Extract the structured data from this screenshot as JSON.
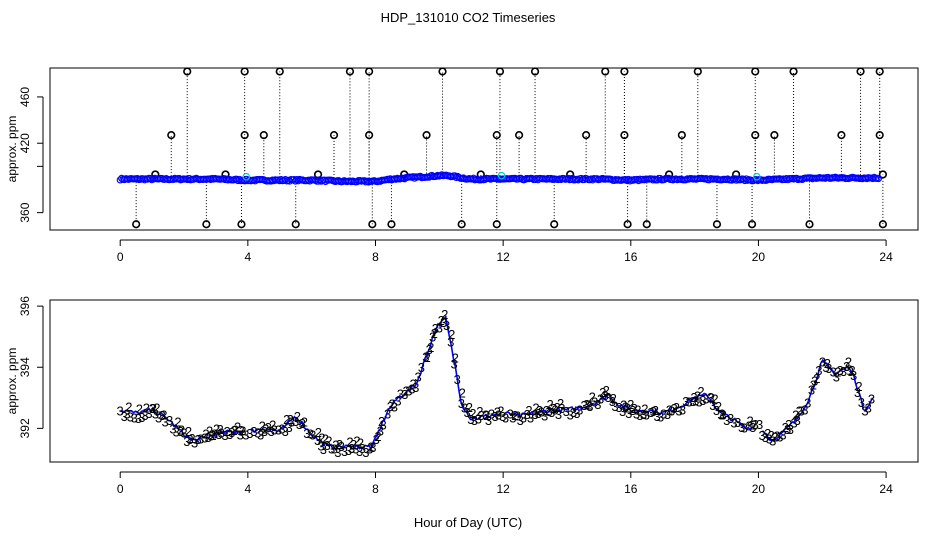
{
  "title": "HDP_131010  CO2 Timeseries",
  "xlabel": "Hour of Day (UTC)",
  "colors": {
    "primary": "#0000ff",
    "secondary": "#00cc00",
    "cyan": "#00cccc",
    "black": "#000000"
  },
  "chart_data": [
    {
      "type": "scatter",
      "panel": "top",
      "ylabel": "approx. ppm",
      "xlim": [
        -2.2,
        25
      ],
      "ylim": [
        345,
        485
      ],
      "xticks": [
        0,
        4,
        8,
        12,
        16,
        20,
        24
      ],
      "yticks": [
        360,
        400,
        420,
        460
      ],
      "yticklabels": [
        "360",
        "",
        "420",
        "460"
      ],
      "baseline": {
        "x": [
          0,
          1,
          2,
          3,
          4,
          5,
          6,
          7,
          8,
          8.5,
          9,
          9.5,
          10,
          10.3,
          10.7,
          11,
          12,
          13,
          14,
          15,
          16,
          17,
          18,
          19,
          20,
          21,
          22,
          23,
          23.8
        ],
        "y": [
          389,
          389,
          389,
          389,
          388,
          388,
          388,
          387,
          387,
          389,
          390,
          391,
          392,
          392,
          390,
          389,
          389,
          389,
          389,
          389,
          388,
          389,
          389,
          389,
          388,
          389,
          390,
          390,
          390
        ]
      },
      "outliers_high": [
        2.1,
        3.9,
        5.0,
        7.2,
        7.8,
        10.1,
        11.9,
        13.0,
        15.2,
        15.8,
        18.1,
        19.9,
        21.1,
        23.2,
        23.8
      ],
      "outliers_mid": [
        1.6,
        3.9,
        4.5,
        6.7,
        7.8,
        9.6,
        11.8,
        12.5,
        14.6,
        15.8,
        17.6,
        19.9,
        20.5,
        22.6,
        23.8
      ],
      "outliers_low": [
        0.5,
        2.7,
        3.8,
        5.5,
        7.9,
        8.5,
        10.7,
        11.8,
        13.6,
        15.9,
        16.5,
        18.7,
        19.8,
        21.6,
        23.9
      ],
      "outliers_small": [
        1.1,
        3.3,
        6.2,
        8.9,
        11.3,
        14.1,
        17.2,
        19.3,
        23.9
      ],
      "outlier_values": {
        "high": 482,
        "mid": 427,
        "low": 350,
        "small": 393
      }
    },
    {
      "type": "line",
      "panel": "bottom",
      "ylabel": "approx. ppm",
      "xlim": [
        -2.2,
        25
      ],
      "ylim": [
        390.9,
        396.2
      ],
      "xticks": [
        0,
        4,
        8,
        12,
        16,
        20,
        24
      ],
      "yticks": [
        392,
        394,
        396
      ],
      "markers": [
        "3",
        "2"
      ],
      "series": [
        {
          "x": [
            0,
            0.5,
            1,
            1.5,
            2,
            2.3,
            2.7,
            3,
            3.5,
            4,
            4.5,
            5,
            5.5,
            6,
            6.5,
            7,
            7.5,
            7.9,
            8.1,
            8.4,
            8.7,
            9,
            9.3,
            9.6,
            9.9,
            10.2,
            10.5,
            10.7,
            11,
            11.5,
            12,
            12.5,
            13,
            13.5,
            14,
            14.5,
            15,
            15.3,
            15.6,
            16,
            16.5,
            17,
            17.5,
            18,
            18.4,
            18.8,
            19.2,
            19.6,
            20,
            20.4,
            20.8,
            21.2,
            21.6,
            22,
            22.4,
            22.8,
            23,
            23.3,
            23.6
          ],
          "y": [
            392.6,
            392.5,
            392.6,
            392.3,
            391.8,
            391.6,
            391.7,
            391.8,
            391.9,
            391.9,
            392.0,
            391.9,
            392.4,
            391.8,
            391.4,
            391.4,
            391.4,
            391.4,
            391.9,
            392.6,
            393.0,
            393.2,
            393.5,
            394.4,
            395.3,
            395.6,
            394.0,
            392.8,
            392.3,
            392.4,
            392.5,
            392.4,
            392.5,
            392.6,
            392.6,
            392.7,
            392.9,
            393.1,
            392.8,
            392.6,
            392.6,
            392.5,
            392.7,
            393.0,
            393.1,
            392.5,
            392.3,
            392.0,
            392.1,
            391.6,
            391.9,
            392.3,
            393.0,
            394.2,
            393.8,
            394.0,
            393.7,
            392.6,
            393.0
          ]
        }
      ]
    }
  ]
}
